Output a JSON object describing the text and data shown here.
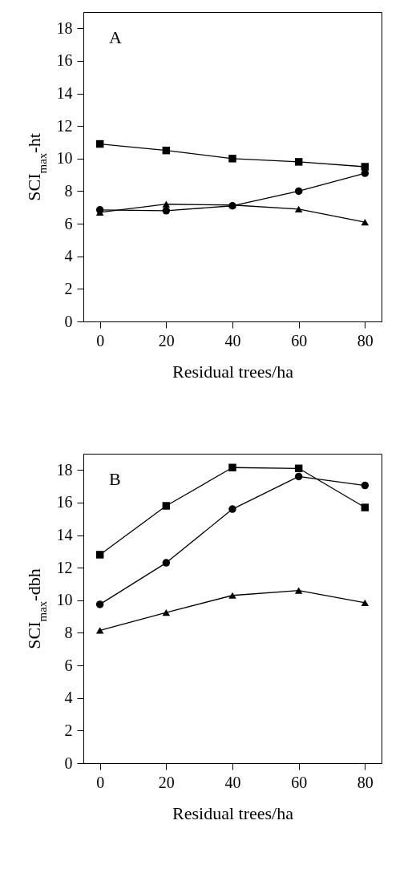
{
  "chart_data": [
    {
      "type": "line",
      "title": "A",
      "xlabel": "Residual trees/ha",
      "ylabel": "SCI$_{max}$-ht",
      "x": [
        0,
        20,
        40,
        60,
        80
      ],
      "xlim": [
        -5,
        85
      ],
      "xticks": [
        0,
        20,
        40,
        60,
        80
      ],
      "ylim": [
        0,
        19
      ],
      "yticks": [
        0,
        2,
        4,
        6,
        8,
        10,
        12,
        14,
        16,
        18
      ],
      "grid": false,
      "line_style": "solid",
      "series": [
        {
          "color": "#000000",
          "marker": "square",
          "values": [
            10.9,
            10.5,
            10.0,
            9.8,
            9.5
          ]
        },
        {
          "color": "#000000",
          "marker": "circle",
          "values": [
            6.85,
            6.8,
            7.1,
            8.0,
            9.1
          ]
        },
        {
          "color": "#000000",
          "marker": "triangle",
          "values": [
            6.7,
            7.2,
            7.15,
            6.9,
            6.1
          ]
        }
      ]
    },
    {
      "type": "line",
      "title": "B",
      "xlabel": "Residual trees/ha",
      "ylabel": "SCI$_{max}$-dbh",
      "x": [
        0,
        20,
        40,
        60,
        80
      ],
      "xlim": [
        -5,
        85
      ],
      "xticks": [
        0,
        20,
        40,
        60,
        80
      ],
      "ylim": [
        0,
        19
      ],
      "yticks": [
        0,
        2,
        4,
        6,
        8,
        10,
        12,
        14,
        16,
        18
      ],
      "grid": false,
      "line_style": "solid",
      "series": [
        {
          "color": "#000000",
          "marker": "square",
          "values": [
            12.8,
            15.8,
            18.15,
            18.1,
            15.7
          ]
        },
        {
          "color": "#000000",
          "marker": "circle",
          "values": [
            9.75,
            12.3,
            15.6,
            17.6,
            17.05
          ]
        },
        {
          "color": "#000000",
          "marker": "triangle",
          "values": [
            8.15,
            9.25,
            10.3,
            10.6,
            9.85
          ]
        }
      ]
    }
  ]
}
